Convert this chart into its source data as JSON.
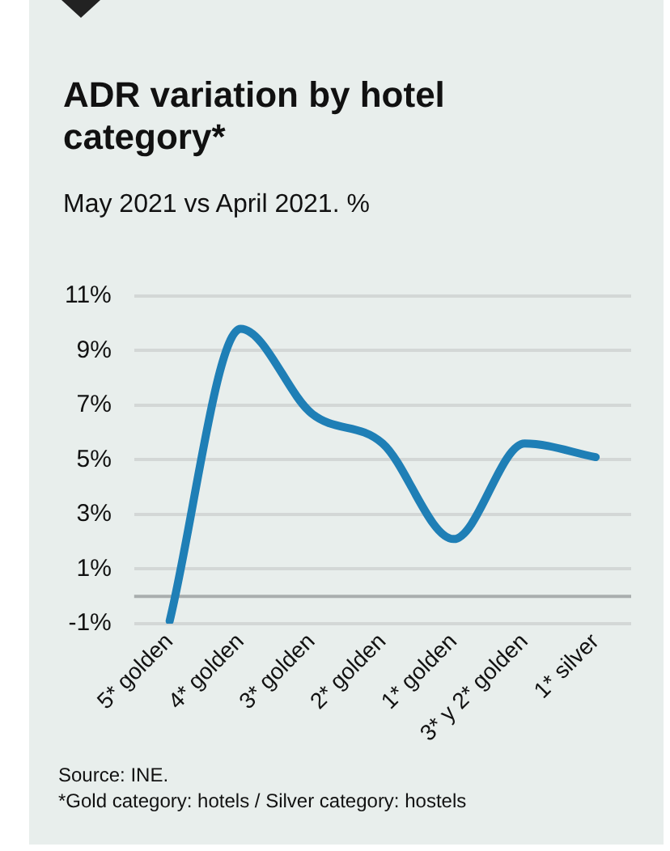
{
  "chart_data": {
    "type": "line",
    "title": "ADR variation by hotel category*",
    "subtitle": "May 2021 vs April 2021. %",
    "categories": [
      "5* golden",
      "4* golden",
      "3* golden",
      "2* golden",
      "1* golden",
      "3* y 2* golden",
      "1* silver"
    ],
    "series": [
      {
        "color": "#1f7fb6",
        "values": [
          -0.9,
          9.8,
          6.7,
          5.6,
          2.1,
          5.6,
          5.1
        ]
      }
    ],
    "ylim": [
      -1,
      11
    ],
    "yticks": [
      {
        "value": -1,
        "label": "-1%"
      },
      {
        "value": 1,
        "label": "1%"
      },
      {
        "value": 3,
        "label": "3%"
      },
      {
        "value": 5,
        "label": "5%"
      },
      {
        "value": 7,
        "label": "7%"
      },
      {
        "value": 9,
        "label": "9%"
      },
      {
        "value": 11,
        "label": "11%"
      }
    ],
    "grid": "y",
    "legend": false,
    "marker": "none",
    "line_style": "solid",
    "ref_lines": [
      {
        "axis": "y",
        "value": 0,
        "color": "#a9aeae"
      }
    ],
    "annotations": [
      "Source: INE.",
      "*Gold category: hotels / Silver category: hostels"
    ]
  }
}
